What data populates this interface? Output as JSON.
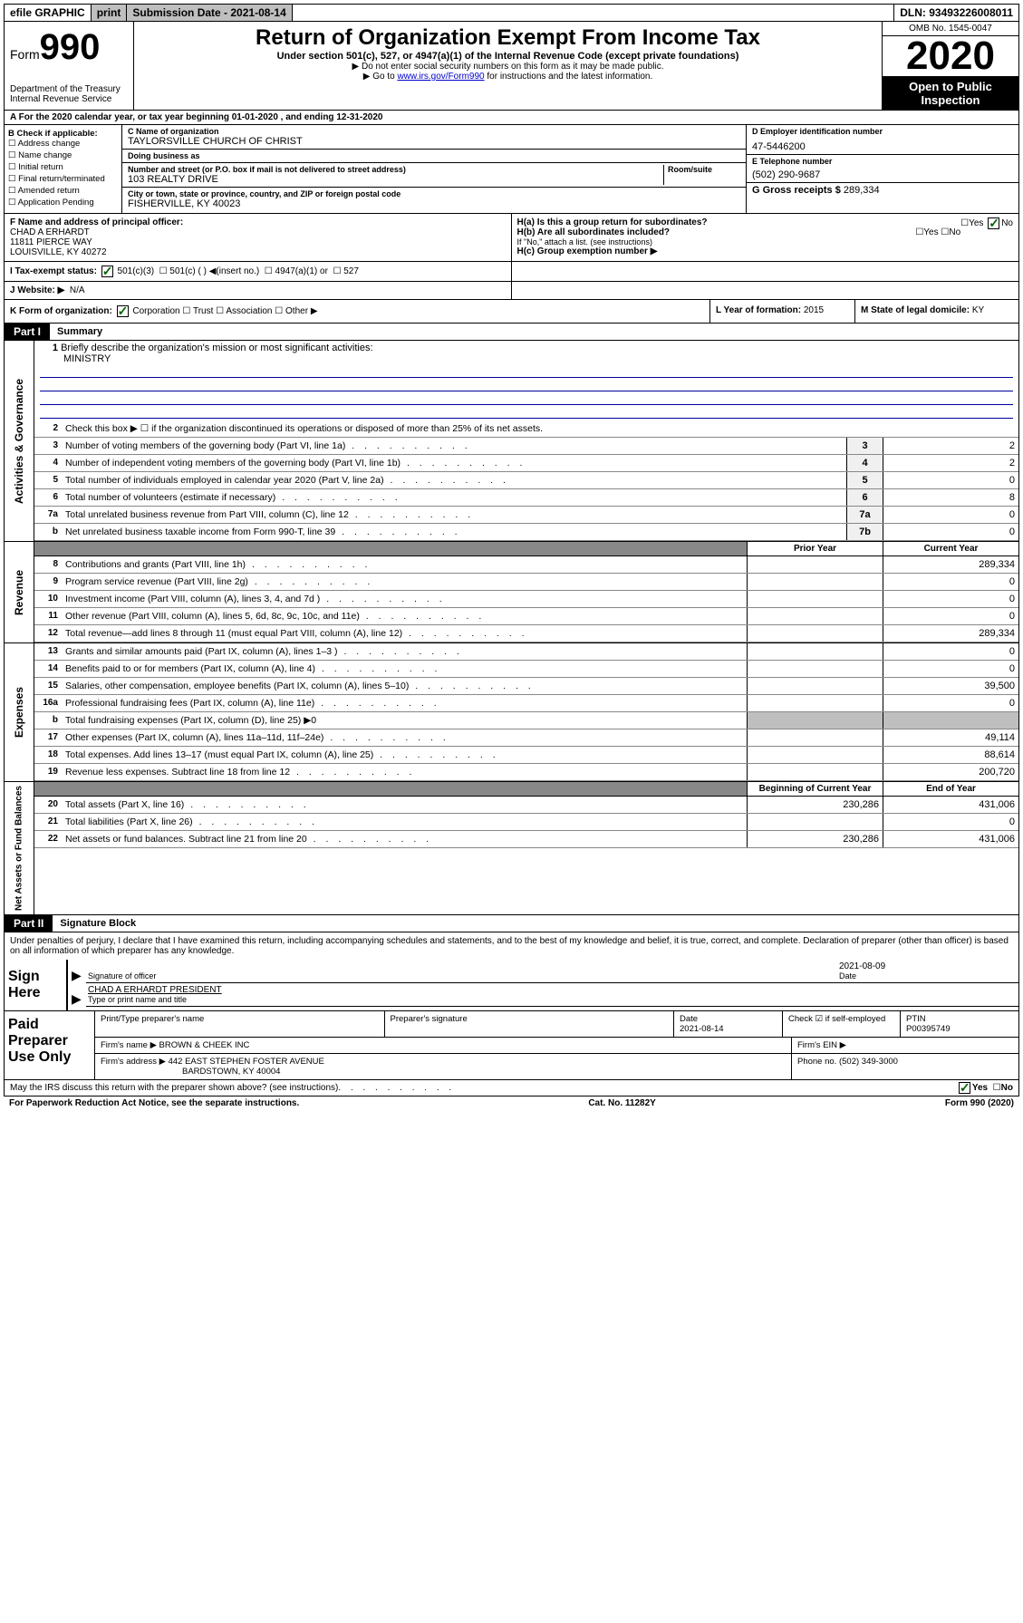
{
  "topbar": {
    "efile": "efile GRAPHIC",
    "print": "print",
    "sub_label": "Submission Date - 2021-08-14",
    "dln": "DLN: 93493226008011"
  },
  "header": {
    "form_prefix": "Form",
    "form_num": "990",
    "dept": "Department of the Treasury\nInternal Revenue Service",
    "title": "Return of Organization Exempt From Income Tax",
    "sub1": "Under section 501(c), 527, or 4947(a)(1) of the Internal Revenue Code (except private foundations)",
    "sub2": "▶ Do not enter social security numbers on this form as it may be made public.",
    "sub3_pre": "▶ Go to ",
    "sub3_link": "www.irs.gov/Form990",
    "sub3_post": " for instructions and the latest information.",
    "omb": "OMB No. 1545-0047",
    "year": "2020",
    "inspect": "Open to Public Inspection"
  },
  "row_a": "A  For the 2020 calendar year, or tax year beginning 01-01-2020    , and ending 12-31-2020",
  "box_b": {
    "title": "B Check if applicable:",
    "items": [
      "Address change",
      "Name change",
      "Initial return",
      "Final return/terminated",
      "Amended return",
      "Application Pending"
    ]
  },
  "box_c": {
    "name_lbl": "C Name of organization",
    "name": "TAYLORSVILLE CHURCH OF CHRIST",
    "dba_lbl": "Doing business as",
    "addr_lbl": "Number and street (or P.O. box if mail is not delivered to street address)",
    "room_lbl": "Room/suite",
    "addr": "103 REALTY DRIVE",
    "city_lbl": "City or town, state or province, country, and ZIP or foreign postal code",
    "city": "FISHERVILLE, KY  40023"
  },
  "box_d": {
    "ein_lbl": "D Employer identification number",
    "ein": "47-5446200",
    "tel_lbl": "E Telephone number",
    "tel": "(502) 290-9687",
    "gross_lbl": "G Gross receipts $",
    "gross": "289,334"
  },
  "box_f": {
    "lbl": "F  Name and address of principal officer:",
    "name": "CHAD A ERHARDT",
    "addr1": "11811 PIERCE WAY",
    "addr2": "LOUISVILLE, KY  40272"
  },
  "box_h": {
    "ha": "H(a)  Is this a group return for subordinates?",
    "hb": "H(b)  Are all subordinates included?",
    "hb_note": "If \"No,\" attach a list. (see instructions)",
    "hc": "H(c)  Group exemption number ▶"
  },
  "row_i": {
    "lbl": "I    Tax-exempt status:",
    "opts": [
      "501(c)(3)",
      "501(c) (  ) ◀(insert no.)",
      "4947(a)(1) or",
      "527"
    ]
  },
  "row_j": {
    "lbl": "J   Website: ▶",
    "val": "N/A"
  },
  "row_k": {
    "lbl": "K Form of organization:",
    "opts": [
      "Corporation",
      "Trust",
      "Association",
      "Other ▶"
    ]
  },
  "row_l": {
    "lbl": "L Year of formation:",
    "val": "2015"
  },
  "row_m": {
    "lbl": "M State of legal domicile:",
    "val": "KY"
  },
  "part1": {
    "title": "Part I",
    "subtitle": "Summary"
  },
  "sections": {
    "gov": "Activities & Governance",
    "rev": "Revenue",
    "exp": "Expenses",
    "net": "Net Assets or Fund Balances"
  },
  "mission": {
    "num": "1",
    "lbl": "Briefly describe the organization's mission or most significant activities:",
    "val": "MINISTRY"
  },
  "lines_gov": [
    {
      "n": "2",
      "d": "Check this box ▶ ☐  if the organization discontinued its operations or disposed of more than 25% of its net assets."
    },
    {
      "n": "3",
      "d": "Number of voting members of the governing body (Part VI, line 1a)",
      "box": "3",
      "v": "2"
    },
    {
      "n": "4",
      "d": "Number of independent voting members of the governing body (Part VI, line 1b)",
      "box": "4",
      "v": "2"
    },
    {
      "n": "5",
      "d": "Total number of individuals employed in calendar year 2020 (Part V, line 2a)",
      "box": "5",
      "v": "0"
    },
    {
      "n": "6",
      "d": "Total number of volunteers (estimate if necessary)",
      "box": "6",
      "v": "8"
    },
    {
      "n": "7a",
      "d": "Total unrelated business revenue from Part VIII, column (C), line 12",
      "box": "7a",
      "v": "0"
    },
    {
      "n": "b",
      "d": "Net unrelated business taxable income from Form 990-T, line 39",
      "box": "7b",
      "v": "0"
    }
  ],
  "col_hdrs": {
    "prior": "Prior Year",
    "current": "Current Year",
    "begin": "Beginning of Current Year",
    "end": "End of Year"
  },
  "lines_rev": [
    {
      "n": "8",
      "d": "Contributions and grants (Part VIII, line 1h)",
      "p": "",
      "c": "289,334"
    },
    {
      "n": "9",
      "d": "Program service revenue (Part VIII, line 2g)",
      "p": "",
      "c": "0"
    },
    {
      "n": "10",
      "d": "Investment income (Part VIII, column (A), lines 3, 4, and 7d )",
      "p": "",
      "c": "0"
    },
    {
      "n": "11",
      "d": "Other revenue (Part VIII, column (A), lines 5, 6d, 8c, 9c, 10c, and 11e)",
      "p": "",
      "c": "0"
    },
    {
      "n": "12",
      "d": "Total revenue—add lines 8 through 11 (must equal Part VIII, column (A), line 12)",
      "p": "",
      "c": "289,334"
    }
  ],
  "lines_exp": [
    {
      "n": "13",
      "d": "Grants and similar amounts paid (Part IX, column (A), lines 1–3 )",
      "p": "",
      "c": "0"
    },
    {
      "n": "14",
      "d": "Benefits paid to or for members (Part IX, column (A), line 4)",
      "p": "",
      "c": "0"
    },
    {
      "n": "15",
      "d": "Salaries, other compensation, employee benefits (Part IX, column (A), lines 5–10)",
      "p": "",
      "c": "39,500"
    },
    {
      "n": "16a",
      "d": "Professional fundraising fees (Part IX, column (A), line 11e)",
      "p": "",
      "c": "0"
    },
    {
      "n": "b",
      "d": "Total fundraising expenses (Part IX, column (D), line 25) ▶0",
      "shade": true
    },
    {
      "n": "17",
      "d": "Other expenses (Part IX, column (A), lines 11a–11d, 11f–24e)",
      "p": "",
      "c": "49,114"
    },
    {
      "n": "18",
      "d": "Total expenses. Add lines 13–17 (must equal Part IX, column (A), line 25)",
      "p": "",
      "c": "88,614"
    },
    {
      "n": "19",
      "d": "Revenue less expenses. Subtract line 18 from line 12",
      "p": "",
      "c": "200,720"
    }
  ],
  "lines_net": [
    {
      "n": "20",
      "d": "Total assets (Part X, line 16)",
      "p": "230,286",
      "c": "431,006"
    },
    {
      "n": "21",
      "d": "Total liabilities (Part X, line 26)",
      "p": "",
      "c": "0"
    },
    {
      "n": "22",
      "d": "Net assets or fund balances. Subtract line 21 from line 20",
      "p": "230,286",
      "c": "431,006"
    }
  ],
  "part2": {
    "title": "Part II",
    "subtitle": "Signature Block"
  },
  "sig": {
    "declare": "Under penalties of perjury, I declare that I have examined this return, including accompanying schedules and statements, and to the best of my knowledge and belief, it is true, correct, and complete. Declaration of preparer (other than officer) is based on all information of which preparer has any knowledge.",
    "here": "Sign Here",
    "sig_lbl": "Signature of officer",
    "date": "2021-08-09",
    "date_lbl": "Date",
    "name": "CHAD A ERHARDT PRESIDENT",
    "name_lbl": "Type or print name and title"
  },
  "prep": {
    "label": "Paid Preparer Use Only",
    "r1": {
      "a": "Print/Type preparer's name",
      "b": "Preparer's signature",
      "c_lbl": "Date",
      "c": "2021-08-14",
      "d": "Check ☑ if self-employed",
      "e_lbl": "PTIN",
      "e": "P00395749"
    },
    "r2": {
      "a_lbl": "Firm's name     ▶",
      "a": "BROWN & CHEEK INC",
      "b_lbl": "Firm's EIN ▶",
      "b": ""
    },
    "r3": {
      "a_lbl": "Firm's address ▶",
      "a": "442 EAST STEPHEN FOSTER AVENUE",
      "a2": "BARDSTOWN, KY  40004",
      "b_lbl": "Phone no.",
      "b": "(502) 349-3000"
    }
  },
  "footer": {
    "q": "May the IRS discuss this return with the preparer shown above? (see instructions)",
    "yes": "Yes",
    "no": "No"
  },
  "bottom": {
    "left": "For Paperwork Reduction Act Notice, see the separate instructions.",
    "mid": "Cat. No. 11282Y",
    "right": "Form 990 (2020)"
  }
}
